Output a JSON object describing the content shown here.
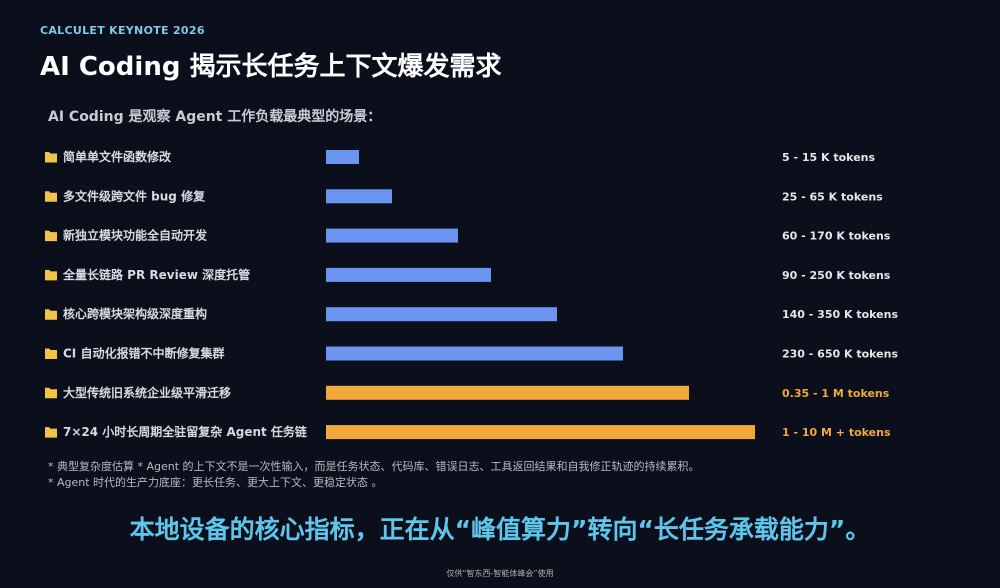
{
  "header": {
    "brand": "CALCULET KEYNOTE 2026",
    "title": "AI Coding 揭示长任务上下文爆发需求",
    "subtitle": "AI Coding 是观察 Agent 工作负载最典型的场景："
  },
  "colors": {
    "background": "#0b0f1c",
    "bar_blue": "#6b93f0",
    "bar_orange": "#f0a93a",
    "label_text": "#d8d9de",
    "value_text": "#e6e6e6",
    "value_highlight": "#f0a93a",
    "headline": "#5ec6ea",
    "folder_icon": "#f3c347"
  },
  "chart_data": {
    "type": "bar",
    "orientation": "horizontal",
    "categories": [
      "简单单文件函数修改",
      "多文件级跨文件 bug 修复",
      "新独立模块功能全自动开发",
      "全量长链路 PR Review 深度托管",
      "核心跨模块架构级深度重构",
      "CI 自动化报错不中断修复集群",
      "大型传统旧系统企业级平滑迁移",
      "7×24 小时长周期全驻留复杂 Agent 任务链"
    ],
    "values": [
      1,
      2,
      4,
      5,
      7,
      9,
      11,
      13
    ],
    "value_labels": [
      "5 - 15 K tokens",
      "25 - 65 K tokens",
      "60 - 170 K tokens",
      "90 - 250 K tokens",
      "140 - 350 K tokens",
      "230 - 650 K tokens",
      "0.35 - 1 M tokens",
      "1 - 10 M + tokens"
    ],
    "highlight": [
      false,
      false,
      false,
      false,
      false,
      false,
      true,
      true
    ],
    "category_icon": "folder-icon",
    "xlim": [
      0,
      13
    ],
    "grid": false
  },
  "notes": [
    "* 典型复杂度估算        * Agent 的上下文不是一次性输入，而是任务状态、代码库、错误日志、工具返回结果和自我修正轨迹的持续累积。",
    "* Agent 时代的生产力底座：更长任务、更大上下文、更稳定状态 。"
  ],
  "headline": "本地设备的核心指标，正在从“峰值算力”转向“长任务承载能力”。",
  "footer": "仅供“智东西-智能体峰会”使用"
}
